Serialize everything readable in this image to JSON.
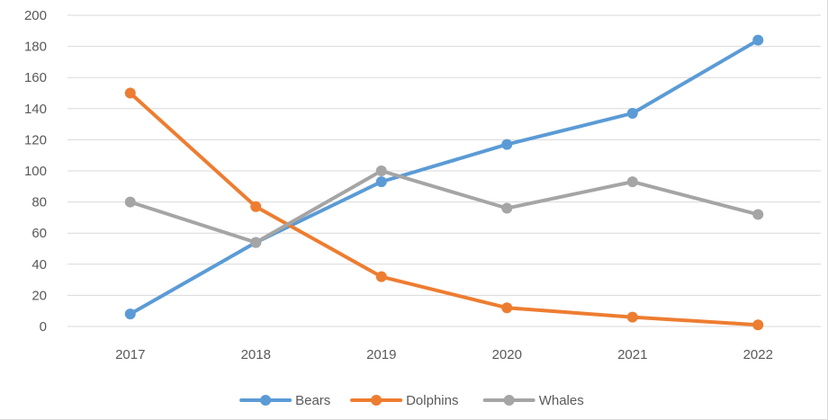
{
  "chart_data": {
    "type": "line",
    "title": "",
    "xlabel": "",
    "ylabel": "",
    "categories": [
      "2017",
      "2018",
      "2019",
      "2020",
      "2021",
      "2022"
    ],
    "ylim": [
      0,
      200
    ],
    "yticks": [
      0,
      20,
      40,
      60,
      80,
      100,
      120,
      140,
      160,
      180,
      200
    ],
    "grid": true,
    "legend_position": "bottom",
    "series": [
      {
        "name": "Bears",
        "color": "#5b9bd5",
        "values": [
          8,
          54,
          93,
          117,
          137,
          184
        ]
      },
      {
        "name": "Dolphins",
        "color": "#ed7d31",
        "values": [
          150,
          77,
          32,
          12,
          6,
          1
        ]
      },
      {
        "name": "Whales",
        "color": "#a5a5a5",
        "values": [
          80,
          54,
          100,
          76,
          93,
          72
        ]
      }
    ]
  }
}
